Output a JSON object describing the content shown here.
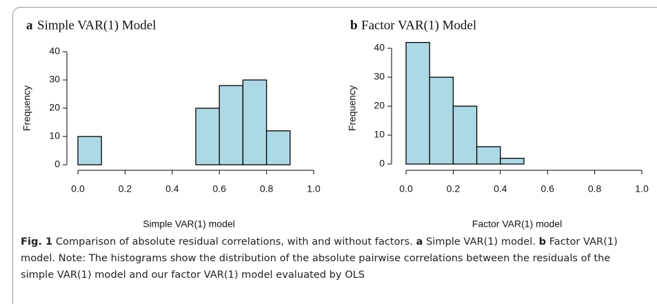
{
  "chart_data": [
    {
      "type": "histogram",
      "panel_label": "a",
      "title": "Simple VAR(1) Model",
      "bins": [
        0,
        0.1,
        0.2,
        0.3,
        0.4,
        0.5,
        0.6,
        0.7,
        0.8,
        0.9
      ],
      "values": [
        10,
        0,
        0,
        0,
        0,
        20,
        28,
        30,
        12
      ],
      "color": "#add8e6",
      "xlabel": "Simple VAR(1) model",
      "ylabel": "Frequency",
      "xlim": [
        0,
        1
      ],
      "ylim": [
        0,
        40
      ],
      "xticks": [
        {
          "value": 0,
          "label": "0.0"
        },
        {
          "value": 0.2,
          "label": "0.2"
        },
        {
          "value": 0.4,
          "label": "0.4"
        },
        {
          "value": 0.6,
          "label": "0.6"
        },
        {
          "value": 0.8,
          "label": "0.8"
        },
        {
          "value": 1,
          "label": "1.0"
        }
      ],
      "yticks": [
        0,
        10,
        20,
        30,
        40
      ]
    },
    {
      "type": "histogram",
      "panel_label": "b",
      "title": "Factor VAR(1) Model",
      "bins": [
        0,
        0.1,
        0.2,
        0.3,
        0.4,
        0.5
      ],
      "values": [
        42,
        30,
        20,
        6,
        2
      ],
      "color": "#add8e6",
      "xlabel": "Factor VAR(1) model",
      "ylabel": "Frequency",
      "xlim": [
        0,
        1
      ],
      "ylim": [
        0,
        42
      ],
      "xticks": [
        {
          "value": 0,
          "label": "0.0"
        },
        {
          "value": 0.2,
          "label": "0.2"
        },
        {
          "value": 0.4,
          "label": "0.4"
        },
        {
          "value": 0.6,
          "label": "0.6"
        },
        {
          "value": 0.8,
          "label": "0.8"
        },
        {
          "value": 1,
          "label": "1.0"
        }
      ],
      "yticks": [
        0,
        10,
        20,
        30,
        40
      ]
    }
  ],
  "caption": {
    "label": "Fig. 1",
    "text": "Comparison of absolute residual correlations, with and without factors.",
    "parts": [
      {
        "label": "a",
        "text": "Simple VAR(1) model."
      },
      {
        "label": "b",
        "text": "Factor VAR(1) model. Note: The histograms show the distribution of the absolute pairwise correlations between the residuals of the simple VAR(1) model and our factor VAR(1) model evaluated by OLS"
      }
    ]
  }
}
